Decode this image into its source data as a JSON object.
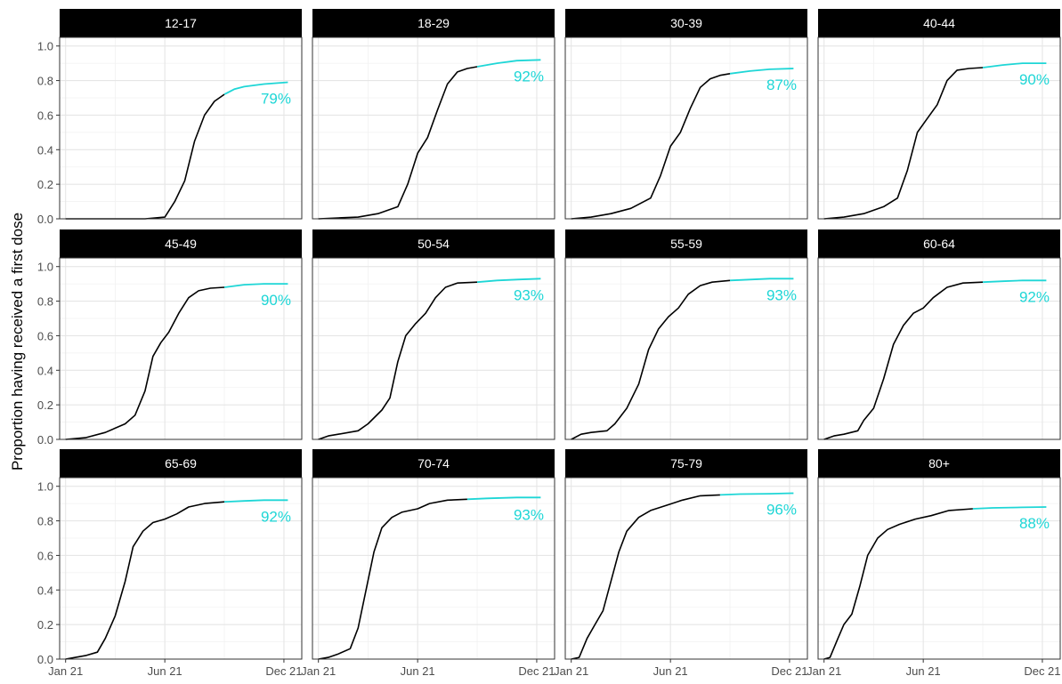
{
  "chart_data": {
    "type": "line",
    "ylabel": "Proportion having received a first dose",
    "xlabel": "",
    "x_ticks": [
      "Jan 21",
      "Jun 21",
      "Dec 21"
    ],
    "y_ticks": [
      "0.0",
      "0.2",
      "0.4",
      "0.6",
      "0.8",
      "1.0"
    ],
    "ylim": [
      0,
      1.05
    ],
    "xlim_months": [
      -0.3,
      11.9
    ],
    "grid": true,
    "legend": "none",
    "observed_color": "#000000",
    "projection_color": "#1ed6d6",
    "series_note_x_units": "months since Jan 21",
    "panels": [
      {
        "label": "12-17",
        "final_label": "79%",
        "final": 0.79,
        "observed": [
          [
            0,
            0
          ],
          [
            4.0,
            0
          ],
          [
            5.0,
            0.01
          ],
          [
            5.5,
            0.1
          ],
          [
            6.0,
            0.22
          ],
          [
            6.5,
            0.45
          ],
          [
            7.0,
            0.6
          ],
          [
            7.5,
            0.68
          ],
          [
            8.0,
            0.72
          ]
        ],
        "projection": [
          [
            8.0,
            0.72
          ],
          [
            8.5,
            0.75
          ],
          [
            9.0,
            0.765
          ],
          [
            10.0,
            0.78
          ],
          [
            11.2,
            0.79
          ]
        ]
      },
      {
        "label": "18-29",
        "final_label": "92%",
        "final": 0.92,
        "observed": [
          [
            0,
            0
          ],
          [
            1.0,
            0.005
          ],
          [
            2.0,
            0.01
          ],
          [
            3.0,
            0.03
          ],
          [
            4.0,
            0.07
          ],
          [
            4.5,
            0.2
          ],
          [
            5.0,
            0.38
          ],
          [
            5.5,
            0.47
          ],
          [
            6.0,
            0.63
          ],
          [
            6.5,
            0.78
          ],
          [
            7.0,
            0.85
          ],
          [
            7.5,
            0.87
          ],
          [
            8.0,
            0.88
          ]
        ],
        "projection": [
          [
            8.0,
            0.88
          ],
          [
            9.0,
            0.9
          ],
          [
            10.0,
            0.915
          ],
          [
            11.2,
            0.92
          ]
        ]
      },
      {
        "label": "30-39",
        "final_label": "87%",
        "final": 0.87,
        "observed": [
          [
            0,
            0
          ],
          [
            1.0,
            0.01
          ],
          [
            2.0,
            0.03
          ],
          [
            3.0,
            0.06
          ],
          [
            4.0,
            0.12
          ],
          [
            4.5,
            0.25
          ],
          [
            5.0,
            0.42
          ],
          [
            5.5,
            0.5
          ],
          [
            6.0,
            0.64
          ],
          [
            6.5,
            0.76
          ],
          [
            7.0,
            0.81
          ],
          [
            7.5,
            0.83
          ],
          [
            8.0,
            0.84
          ]
        ],
        "projection": [
          [
            8.0,
            0.84
          ],
          [
            9.0,
            0.855
          ],
          [
            10.0,
            0.865
          ],
          [
            11.2,
            0.87
          ]
        ]
      },
      {
        "label": "40-44",
        "final_label": "90%",
        "final": 0.9,
        "observed": [
          [
            0,
            0
          ],
          [
            1.0,
            0.01
          ],
          [
            2.0,
            0.03
          ],
          [
            3.0,
            0.07
          ],
          [
            3.7,
            0.12
          ],
          [
            4.2,
            0.28
          ],
          [
            4.7,
            0.5
          ],
          [
            5.2,
            0.58
          ],
          [
            5.7,
            0.66
          ],
          [
            6.2,
            0.8
          ],
          [
            6.7,
            0.86
          ],
          [
            7.3,
            0.87
          ],
          [
            8.0,
            0.875
          ]
        ],
        "projection": [
          [
            8.0,
            0.875
          ],
          [
            9.0,
            0.89
          ],
          [
            10.0,
            0.9
          ],
          [
            11.2,
            0.9
          ]
        ]
      },
      {
        "label": "45-49",
        "final_label": "90%",
        "final": 0.9,
        "observed": [
          [
            0,
            0
          ],
          [
            1.0,
            0.01
          ],
          [
            2.0,
            0.04
          ],
          [
            3.0,
            0.09
          ],
          [
            3.5,
            0.14
          ],
          [
            4.0,
            0.28
          ],
          [
            4.4,
            0.48
          ],
          [
            4.8,
            0.56
          ],
          [
            5.2,
            0.62
          ],
          [
            5.7,
            0.73
          ],
          [
            6.2,
            0.82
          ],
          [
            6.7,
            0.86
          ],
          [
            7.3,
            0.875
          ],
          [
            8.0,
            0.88
          ]
        ],
        "projection": [
          [
            8.0,
            0.88
          ],
          [
            9.0,
            0.895
          ],
          [
            10.0,
            0.9
          ],
          [
            11.2,
            0.9
          ]
        ]
      },
      {
        "label": "50-54",
        "final_label": "93%",
        "final": 0.93,
        "observed": [
          [
            0,
            0
          ],
          [
            0.5,
            0.02
          ],
          [
            1.0,
            0.03
          ],
          [
            2.0,
            0.05
          ],
          [
            2.5,
            0.09
          ],
          [
            3.2,
            0.17
          ],
          [
            3.6,
            0.24
          ],
          [
            4.0,
            0.45
          ],
          [
            4.4,
            0.6
          ],
          [
            4.9,
            0.67
          ],
          [
            5.4,
            0.73
          ],
          [
            5.9,
            0.82
          ],
          [
            6.4,
            0.88
          ],
          [
            7.0,
            0.905
          ],
          [
            8.0,
            0.91
          ]
        ],
        "projection": [
          [
            8.0,
            0.91
          ],
          [
            9.0,
            0.92
          ],
          [
            10.0,
            0.925
          ],
          [
            11.2,
            0.93
          ]
        ]
      },
      {
        "label": "55-59",
        "final_label": "93%",
        "final": 0.93,
        "observed": [
          [
            0,
            0
          ],
          [
            0.5,
            0.03
          ],
          [
            1.0,
            0.04
          ],
          [
            1.8,
            0.05
          ],
          [
            2.2,
            0.09
          ],
          [
            2.8,
            0.18
          ],
          [
            3.4,
            0.32
          ],
          [
            3.9,
            0.52
          ],
          [
            4.4,
            0.64
          ],
          [
            4.9,
            0.71
          ],
          [
            5.4,
            0.76
          ],
          [
            5.9,
            0.84
          ],
          [
            6.5,
            0.89
          ],
          [
            7.1,
            0.91
          ],
          [
            8.0,
            0.92
          ]
        ],
        "projection": [
          [
            8.0,
            0.92
          ],
          [
            9.0,
            0.925
          ],
          [
            10.0,
            0.93
          ],
          [
            11.2,
            0.93
          ]
        ]
      },
      {
        "label": "60-64",
        "final_label": "92%",
        "final": 0.92,
        "observed": [
          [
            0,
            0
          ],
          [
            0.5,
            0.02
          ],
          [
            1.0,
            0.03
          ],
          [
            1.7,
            0.05
          ],
          [
            2.0,
            0.11
          ],
          [
            2.5,
            0.18
          ],
          [
            3.0,
            0.35
          ],
          [
            3.5,
            0.55
          ],
          [
            4.0,
            0.66
          ],
          [
            4.5,
            0.73
          ],
          [
            5.0,
            0.76
          ],
          [
            5.5,
            0.82
          ],
          [
            6.2,
            0.88
          ],
          [
            7.0,
            0.905
          ],
          [
            8.0,
            0.91
          ]
        ],
        "projection": [
          [
            8.0,
            0.91
          ],
          [
            9.0,
            0.915
          ],
          [
            10.0,
            0.92
          ],
          [
            11.2,
            0.92
          ]
        ]
      },
      {
        "label": "65-69",
        "final_label": "92%",
        "final": 0.92,
        "observed": [
          [
            0,
            0
          ],
          [
            0.5,
            0.01
          ],
          [
            1.0,
            0.02
          ],
          [
            1.6,
            0.04
          ],
          [
            2.0,
            0.12
          ],
          [
            2.5,
            0.25
          ],
          [
            3.0,
            0.45
          ],
          [
            3.4,
            0.65
          ],
          [
            3.9,
            0.74
          ],
          [
            4.4,
            0.79
          ],
          [
            5.0,
            0.81
          ],
          [
            5.6,
            0.84
          ],
          [
            6.2,
            0.88
          ],
          [
            7.0,
            0.9
          ],
          [
            8.0,
            0.91
          ]
        ],
        "projection": [
          [
            8.0,
            0.91
          ],
          [
            9.0,
            0.915
          ],
          [
            10.0,
            0.92
          ],
          [
            11.2,
            0.92
          ]
        ]
      },
      {
        "label": "70-74",
        "final_label": "93%",
        "final": 0.93,
        "observed": [
          [
            0,
            0
          ],
          [
            0.5,
            0.01
          ],
          [
            1.0,
            0.03
          ],
          [
            1.6,
            0.06
          ],
          [
            2.0,
            0.18
          ],
          [
            2.4,
            0.4
          ],
          [
            2.8,
            0.62
          ],
          [
            3.2,
            0.76
          ],
          [
            3.7,
            0.82
          ],
          [
            4.2,
            0.85
          ],
          [
            5.0,
            0.87
          ],
          [
            5.6,
            0.9
          ],
          [
            6.5,
            0.92
          ],
          [
            7.5,
            0.925
          ]
        ],
        "projection": [
          [
            7.5,
            0.925
          ],
          [
            8.5,
            0.93
          ],
          [
            10.0,
            0.935
          ],
          [
            11.2,
            0.935
          ]
        ]
      },
      {
        "label": "75-79",
        "final_label": "96%",
        "final": 0.96,
        "observed": [
          [
            0,
            0
          ],
          [
            0.4,
            0.01
          ],
          [
            0.8,
            0.12
          ],
          [
            1.2,
            0.2
          ],
          [
            1.6,
            0.28
          ],
          [
            2.0,
            0.45
          ],
          [
            2.4,
            0.62
          ],
          [
            2.8,
            0.74
          ],
          [
            3.4,
            0.82
          ],
          [
            4.0,
            0.86
          ],
          [
            4.8,
            0.89
          ],
          [
            5.6,
            0.92
          ],
          [
            6.5,
            0.945
          ],
          [
            7.5,
            0.95
          ]
        ],
        "projection": [
          [
            7.5,
            0.95
          ],
          [
            8.5,
            0.955
          ],
          [
            10.0,
            0.957
          ],
          [
            11.2,
            0.96
          ]
        ]
      },
      {
        "label": "80+",
        "final_label": "88%",
        "final": 0.88,
        "observed": [
          [
            0,
            0
          ],
          [
            0.3,
            0.01
          ],
          [
            0.7,
            0.12
          ],
          [
            1.0,
            0.2
          ],
          [
            1.4,
            0.26
          ],
          [
            1.8,
            0.42
          ],
          [
            2.2,
            0.6
          ],
          [
            2.7,
            0.7
          ],
          [
            3.2,
            0.75
          ],
          [
            3.8,
            0.78
          ],
          [
            4.6,
            0.81
          ],
          [
            5.4,
            0.83
          ],
          [
            6.3,
            0.86
          ],
          [
            7.5,
            0.87
          ]
        ],
        "projection": [
          [
            7.5,
            0.87
          ],
          [
            8.5,
            0.875
          ],
          [
            10.0,
            0.878
          ],
          [
            11.2,
            0.88
          ]
        ]
      }
    ]
  }
}
